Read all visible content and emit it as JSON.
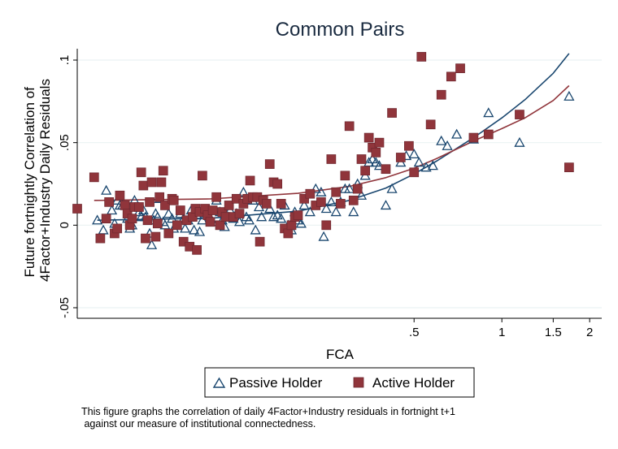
{
  "chart_data": {
    "type": "scatter",
    "title": "Common Pairs",
    "xlabel": "FCA",
    "ylabel_lines": [
      "Future fortnightly Correlation of",
      "4Factor+Industry Daily Residuals"
    ],
    "x_scale": "log",
    "xlim": [
      0.035,
      2.2
    ],
    "ylim": [
      -0.05,
      0.1
    ],
    "x_ticks": [
      {
        "value": 0.5,
        "label": ".5"
      },
      {
        "value": 1,
        "label": "1"
      },
      {
        "value": 1.5,
        "label": "1.5"
      },
      {
        "value": 2,
        "label": "2"
      }
    ],
    "y_ticks": [
      {
        "value": -0.05,
        "label": "-.05"
      },
      {
        "value": 0,
        "label": "0"
      },
      {
        "value": 0.05,
        "label": ".05"
      },
      {
        "value": 0.1,
        "label": ".1"
      }
    ],
    "grid": "horizontal",
    "legend_position": "bottom",
    "series": [
      {
        "name": "Passive Holder",
        "marker": "hollow-triangle",
        "color": "#1a476f",
        "points": [
          [
            0.041,
            0.003
          ],
          [
            0.043,
            -0.003
          ],
          [
            0.044,
            0.021
          ],
          [
            0.046,
            0.009
          ],
          [
            0.047,
            0.001
          ],
          [
            0.048,
            0.015
          ],
          [
            0.049,
            0.012
          ],
          [
            0.05,
            0.012
          ],
          [
            0.052,
            0.004
          ],
          [
            0.053,
            -0.002
          ],
          [
            0.054,
            0.0
          ],
          [
            0.055,
            0.015
          ],
          [
            0.057,
            0.008
          ],
          [
            0.058,
            0.005
          ],
          [
            0.059,
            0.009
          ],
          [
            0.06,
            0.005
          ],
          [
            0.062,
            -0.005
          ],
          [
            0.063,
            -0.012
          ],
          [
            0.064,
            0.003
          ],
          [
            0.065,
            0.007
          ],
          [
            0.066,
            0.005
          ],
          [
            0.067,
            0.016
          ],
          [
            0.069,
            0.002
          ],
          [
            0.07,
            0.0
          ],
          [
            0.072,
            0.007
          ],
          [
            0.074,
            0.004
          ],
          [
            0.075,
            -0.002
          ],
          [
            0.077,
            0.0
          ],
          [
            0.079,
            0.007
          ],
          [
            0.081,
            0.004
          ],
          [
            0.082,
            -0.002
          ],
          [
            0.084,
            0.003
          ],
          [
            0.086,
            0.009
          ],
          [
            0.088,
            -0.003
          ],
          [
            0.09,
            0.006
          ],
          [
            0.092,
            -0.004
          ],
          [
            0.094,
            0.003
          ],
          [
            0.096,
            0.008
          ],
          [
            0.098,
            0.009
          ],
          [
            0.1,
            0.004
          ],
          [
            0.102,
            0.002
          ],
          [
            0.105,
            0.015
          ],
          [
            0.108,
            0.008
          ],
          [
            0.11,
            0.003
          ],
          [
            0.112,
            -0.001
          ],
          [
            0.115,
            0.005
          ],
          [
            0.117,
            0.009
          ],
          [
            0.12,
            0.004
          ],
          [
            0.123,
            0.007
          ],
          [
            0.126,
            0.002
          ],
          [
            0.13,
            0.02
          ],
          [
            0.133,
            0.005
          ],
          [
            0.136,
            0.003
          ],
          [
            0.14,
            0.015
          ],
          [
            0.143,
            -0.003
          ],
          [
            0.147,
            0.011
          ],
          [
            0.15,
            0.005
          ],
          [
            0.155,
            0.015
          ],
          [
            0.16,
            0.01
          ],
          [
            0.165,
            0.005
          ],
          [
            0.17,
            0.006
          ],
          [
            0.175,
            0.004
          ],
          [
            0.18,
            0.012
          ],
          [
            0.185,
            0.0
          ],
          [
            0.19,
            -0.003
          ],
          [
            0.195,
            0.008
          ],
          [
            0.2,
            0.003
          ],
          [
            0.205,
            0.001
          ],
          [
            0.21,
            0.012
          ],
          [
            0.22,
            0.008
          ],
          [
            0.23,
            0.022
          ],
          [
            0.24,
            0.02
          ],
          [
            0.245,
            -0.007
          ],
          [
            0.25,
            0.01
          ],
          [
            0.26,
            0.014
          ],
          [
            0.27,
            0.008
          ],
          [
            0.28,
            0.014
          ],
          [
            0.29,
            0.022
          ],
          [
            0.3,
            0.022
          ],
          [
            0.31,
            0.008
          ],
          [
            0.32,
            0.025
          ],
          [
            0.33,
            0.018
          ],
          [
            0.34,
            0.03
          ],
          [
            0.35,
            0.038
          ],
          [
            0.36,
            0.04
          ],
          [
            0.37,
            0.038
          ],
          [
            0.38,
            0.036
          ],
          [
            0.4,
            0.012
          ],
          [
            0.42,
            0.022
          ],
          [
            0.45,
            0.038
          ],
          [
            0.47,
            0.042
          ],
          [
            0.5,
            0.043
          ],
          [
            0.52,
            0.038
          ],
          [
            0.55,
            0.035
          ],
          [
            0.58,
            0.036
          ],
          [
            0.62,
            0.051
          ],
          [
            0.65,
            0.048
          ],
          [
            0.7,
            0.055
          ],
          [
            0.8,
            0.052
          ],
          [
            0.9,
            0.068
          ],
          [
            1.15,
            0.05
          ],
          [
            1.7,
            0.078
          ]
        ]
      },
      {
        "name": "Active Holder",
        "marker": "filled-square",
        "color": "#90353b",
        "points": [
          [
            0.035,
            0.01
          ],
          [
            0.04,
            0.029
          ],
          [
            0.042,
            -0.008
          ],
          [
            0.044,
            0.004
          ],
          [
            0.045,
            0.014
          ],
          [
            0.047,
            -0.005
          ],
          [
            0.048,
            -0.002
          ],
          [
            0.049,
            0.018
          ],
          [
            0.051,
            0.012
          ],
          [
            0.052,
            0.007
          ],
          [
            0.053,
            0.0
          ],
          [
            0.054,
            0.004
          ],
          [
            0.055,
            0.011
          ],
          [
            0.057,
            0.011
          ],
          [
            0.058,
            0.032
          ],
          [
            0.059,
            0.024
          ],
          [
            0.06,
            -0.008
          ],
          [
            0.061,
            0.003
          ],
          [
            0.062,
            0.014
          ],
          [
            0.063,
            0.026
          ],
          [
            0.065,
            -0.007
          ],
          [
            0.066,
            0.001
          ],
          [
            0.067,
            0.017
          ],
          [
            0.068,
            0.026
          ],
          [
            0.069,
            0.033
          ],
          [
            0.07,
            0.012
          ],
          [
            0.072,
            -0.005
          ],
          [
            0.074,
            0.016
          ],
          [
            0.075,
            0.015
          ],
          [
            0.077,
            0.0
          ],
          [
            0.079,
            0.009
          ],
          [
            0.081,
            -0.01
          ],
          [
            0.083,
            0.003
          ],
          [
            0.085,
            -0.013
          ],
          [
            0.087,
            0.005
          ],
          [
            0.089,
            0.01
          ],
          [
            0.09,
            -0.015
          ],
          [
            0.092,
            0.008
          ],
          [
            0.094,
            0.03
          ],
          [
            0.096,
            0.01
          ],
          [
            0.098,
            0.006
          ],
          [
            0.1,
            0.002
          ],
          [
            0.102,
            0.009
          ],
          [
            0.105,
            0.017
          ],
          [
            0.108,
            0.0
          ],
          [
            0.11,
            0.008
          ],
          [
            0.113,
            0.005
          ],
          [
            0.116,
            0.012
          ],
          [
            0.12,
            0.005
          ],
          [
            0.123,
            0.016
          ],
          [
            0.126,
            0.007
          ],
          [
            0.13,
            0.013
          ],
          [
            0.134,
            0.016
          ],
          [
            0.137,
            0.027
          ],
          [
            0.14,
            0.017
          ],
          [
            0.145,
            0.017
          ],
          [
            0.148,
            -0.01
          ],
          [
            0.152,
            0.015
          ],
          [
            0.156,
            0.013
          ],
          [
            0.16,
            0.037
          ],
          [
            0.165,
            0.026
          ],
          [
            0.17,
            0.025
          ],
          [
            0.175,
            0.013
          ],
          [
            0.18,
            -0.002
          ],
          [
            0.185,
            -0.005
          ],
          [
            0.19,
            0.0
          ],
          [
            0.195,
            0.005
          ],
          [
            0.2,
            0.006
          ],
          [
            0.21,
            0.016
          ],
          [
            0.22,
            0.019
          ],
          [
            0.23,
            0.012
          ],
          [
            0.24,
            0.014
          ],
          [
            0.25,
            0.0
          ],
          [
            0.26,
            0.04
          ],
          [
            0.27,
            0.02
          ],
          [
            0.28,
            0.013
          ],
          [
            0.29,
            0.03
          ],
          [
            0.3,
            0.06
          ],
          [
            0.31,
            0.015
          ],
          [
            0.32,
            0.022
          ],
          [
            0.33,
            0.04
          ],
          [
            0.34,
            0.033
          ],
          [
            0.35,
            0.053
          ],
          [
            0.36,
            0.047
          ],
          [
            0.37,
            0.044
          ],
          [
            0.38,
            0.05
          ],
          [
            0.4,
            0.034
          ],
          [
            0.42,
            0.068
          ],
          [
            0.45,
            0.041
          ],
          [
            0.48,
            0.048
          ],
          [
            0.5,
            0.032
          ],
          [
            0.53,
            0.102
          ],
          [
            0.57,
            0.061
          ],
          [
            0.62,
            0.079
          ],
          [
            0.67,
            0.09
          ],
          [
            0.72,
            0.095
          ],
          [
            0.8,
            0.053
          ],
          [
            0.9,
            0.055
          ],
          [
            1.15,
            0.067
          ],
          [
            1.7,
            0.035
          ]
        ]
      }
    ],
    "fit_lines": [
      {
        "series": "Passive Holder",
        "color": "#1a476f",
        "points": [
          [
            0.041,
            0.003
          ],
          [
            0.1,
            0.0042
          ],
          [
            0.2,
            0.0085
          ],
          [
            0.3,
            0.015
          ],
          [
            0.4,
            0.0225
          ],
          [
            0.5,
            0.031
          ],
          [
            0.6,
            0.039
          ],
          [
            0.8,
            0.053
          ],
          [
            1.0,
            0.065
          ],
          [
            1.2,
            0.076
          ],
          [
            1.5,
            0.092
          ],
          [
            1.7,
            0.104
          ]
        ]
      },
      {
        "series": "Active Holder",
        "color": "#90353b",
        "points": [
          [
            0.04,
            0.015
          ],
          [
            0.1,
            0.0159
          ],
          [
            0.2,
            0.0193
          ],
          [
            0.3,
            0.0235
          ],
          [
            0.4,
            0.0288
          ],
          [
            0.5,
            0.0345
          ],
          [
            0.6,
            0.0405
          ],
          [
            0.8,
            0.051
          ],
          [
            1.0,
            0.0585
          ],
          [
            1.2,
            0.065
          ],
          [
            1.5,
            0.0755
          ],
          [
            1.7,
            0.0845
          ]
        ]
      }
    ]
  },
  "caption_lines": [
    "This figure graphs the correlation of daily 4Factor+Industry residuals in fortnight t+1",
    " against our measure of institutional connectedness."
  ]
}
